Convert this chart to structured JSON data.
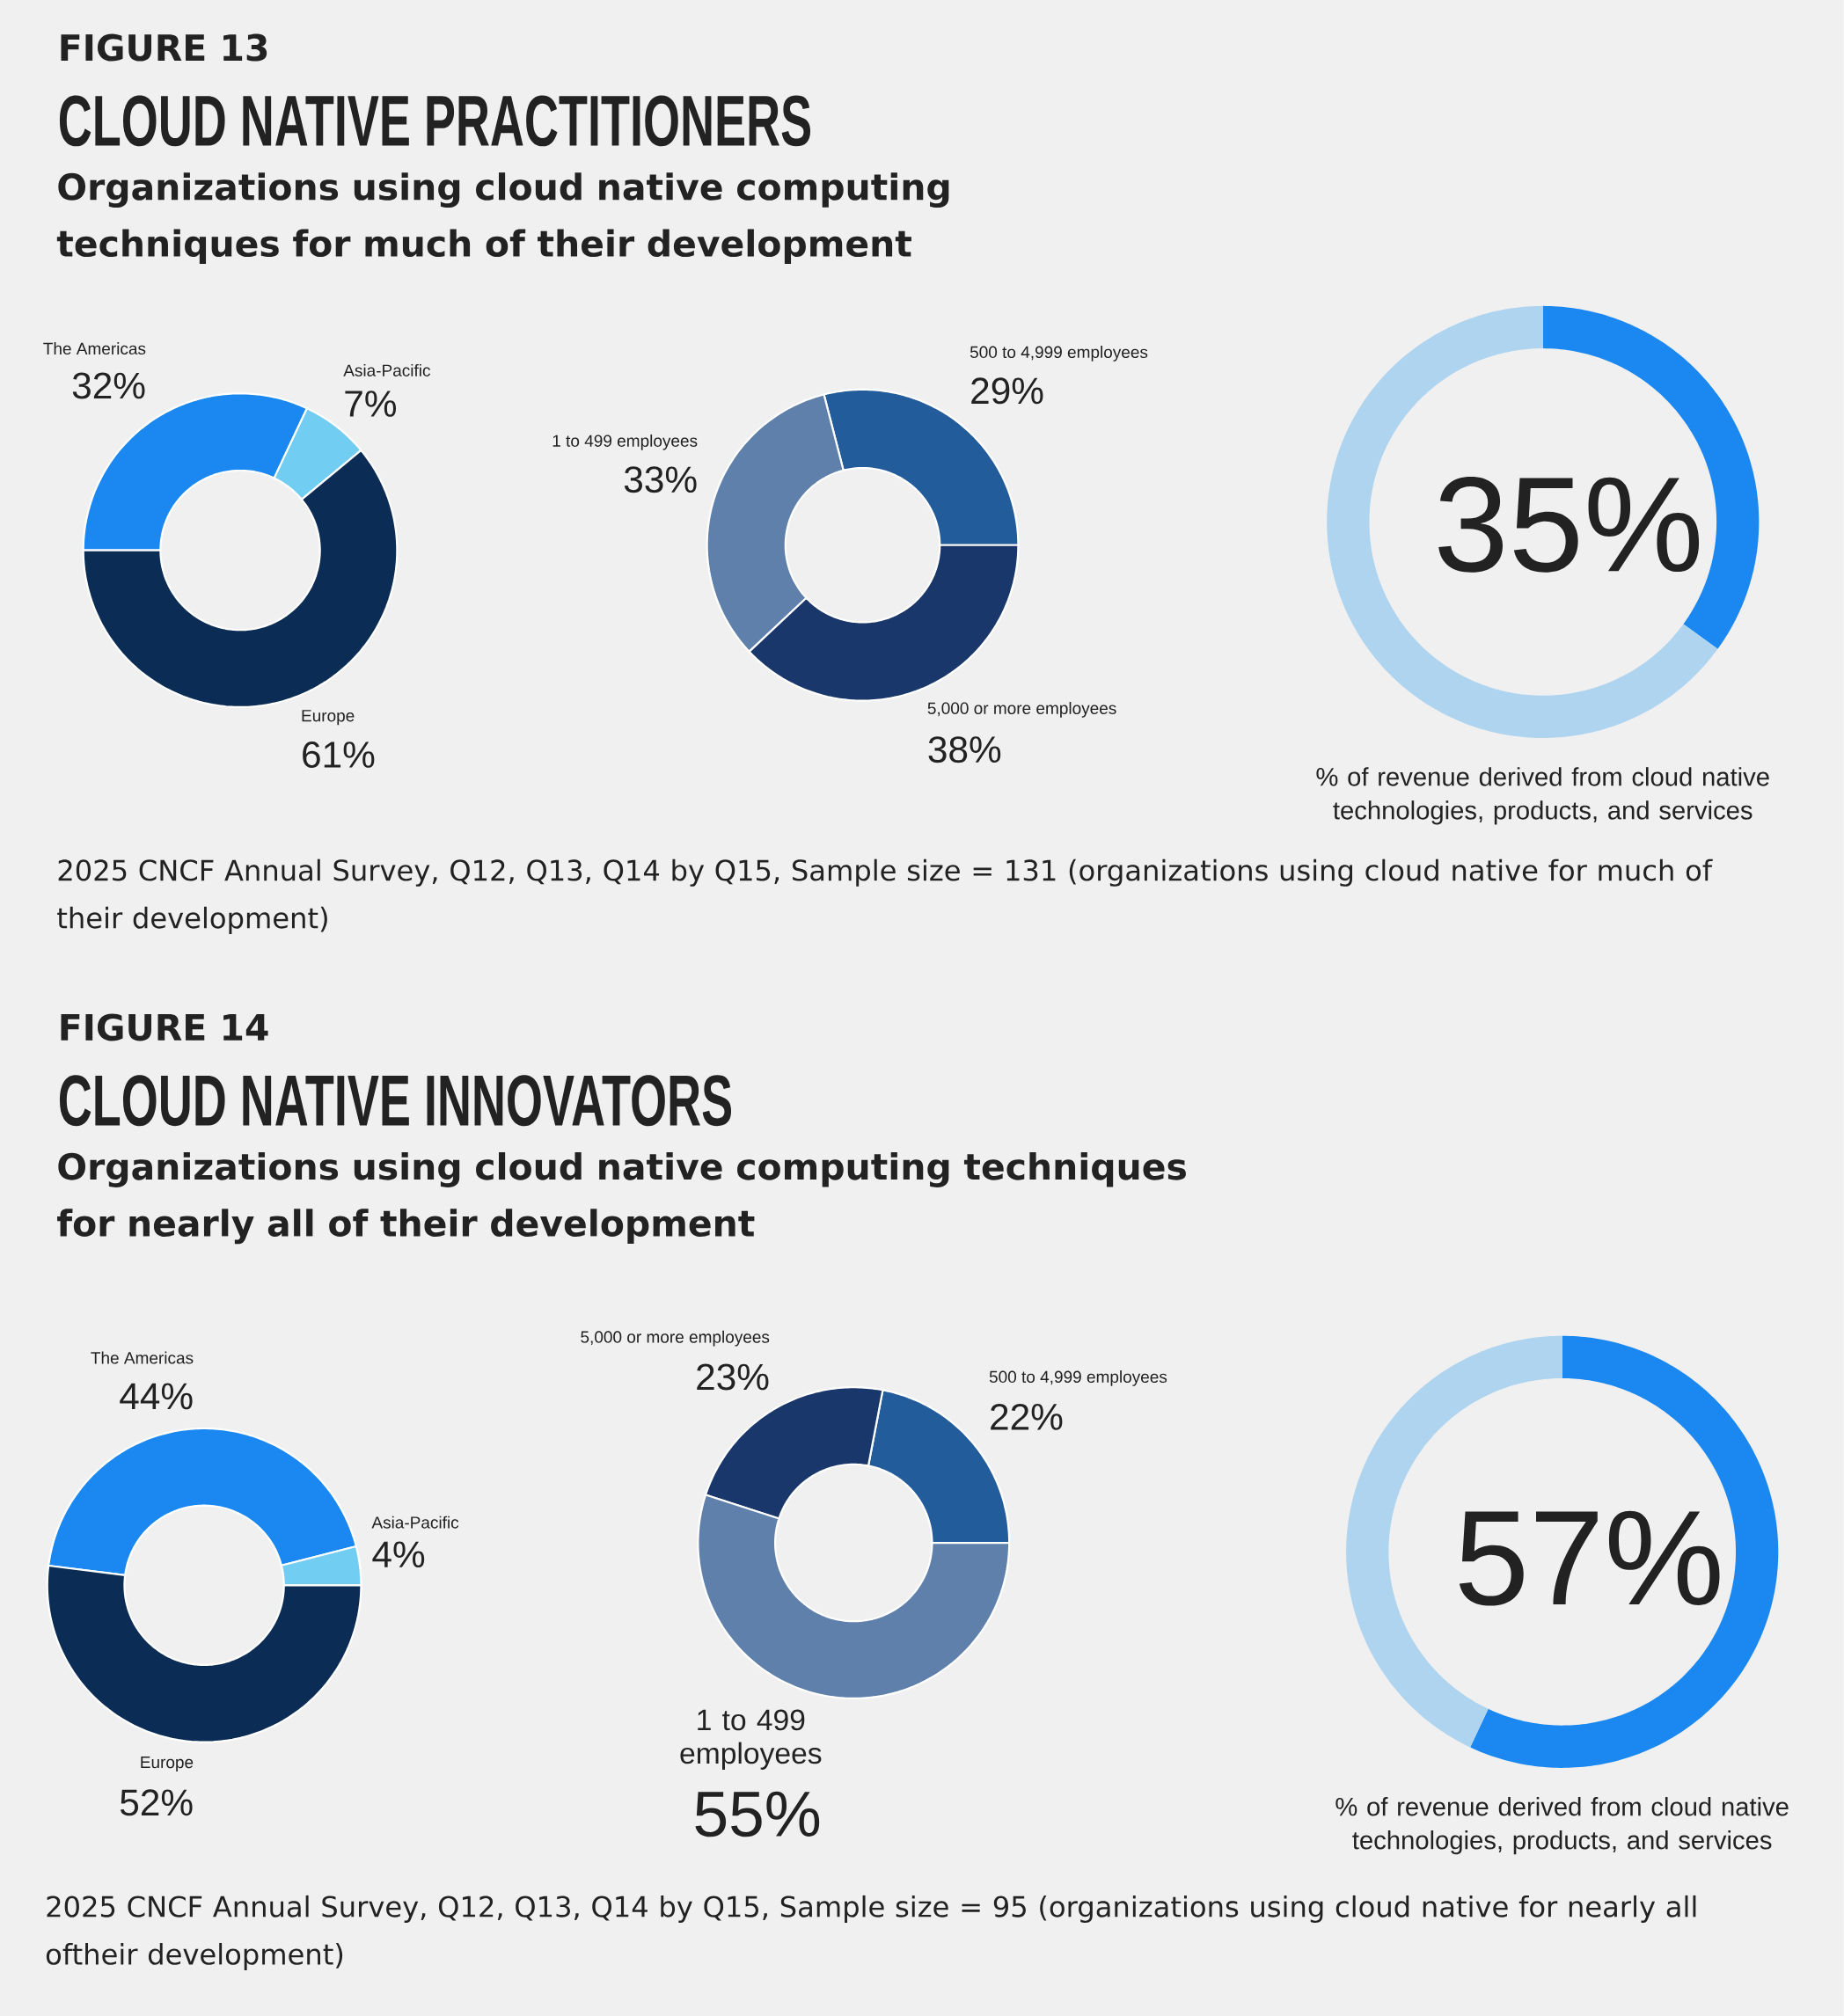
{
  "chart_data": [
    {
      "type": "donut",
      "title": "CLOUD NATIVE PRACTITIONERS",
      "subtitle": "Organizations using cloud native computing techniques for much of their development",
      "annotations": [
        "FIGURE 13",
        "2025 CNCF Annual Survey, Q12, Q13, Q14 by Q15, Sample size = 131 (organizations using cloud native for much of their development)"
      ],
      "categories": [
        "The Americas",
        "Asia-Pacific",
        "Europe"
      ],
      "values": [
        32,
        7,
        61
      ],
      "colors": [
        "#1a88f0",
        "#72cdf3",
        "#0b2c55"
      ],
      "value_labels": [
        "32%",
        "7%",
        "61%"
      ]
    },
    {
      "type": "donut",
      "categories": [
        "500 to 4,999 employees",
        "1 to 499 employees",
        "5,000 or more employees"
      ],
      "values": [
        29,
        33,
        38
      ],
      "colors": [
        "#235c9a",
        "#5e80ab",
        "#1a376b"
      ],
      "value_labels": [
        "29%",
        "33%",
        "38%"
      ]
    },
    {
      "type": "donut",
      "annotations": [
        "% of revenue derived from cloud native technologies, products, and services"
      ],
      "categories": [
        null,
        null
      ],
      "values": [
        35,
        65
      ],
      "colors": [
        "#1a88f0",
        "#aed4ef"
      ],
      "value_labels": [
        "35%",
        null
      ]
    },
    {
      "type": "donut",
      "title": "CLOUD NATIVE INNOVATORS",
      "subtitle": "Organizations using cloud native computing techniques for nearly all of their development",
      "annotations": [
        "FIGURE 14",
        "2025 CNCF Annual Survey, Q12, Q13, Q14 by Q15, Sample size = 95 (organizations using cloud native for nearly all oftheir development)"
      ],
      "categories": [
        "The Americas",
        "Asia-Pacific",
        "Europe"
      ],
      "values": [
        44,
        4,
        52
      ],
      "colors": [
        "#1a88f0",
        "#72cdf3",
        "#0b2c55"
      ],
      "value_labels": [
        "44%",
        "4%",
        "52%"
      ]
    },
    {
      "type": "donut",
      "categories": [
        "500 to 4,999 employees",
        "5,000 or more employees",
        "1 to 499 employees"
      ],
      "values": [
        22,
        23,
        55
      ],
      "colors": [
        "#235c9a",
        "#1a376b",
        "#5e80ab"
      ],
      "value_labels": [
        "22%",
        "23%",
        "55%"
      ]
    },
    {
      "type": "donut",
      "annotations": [
        "% of revenue derived from cloud native technologies, products, and services"
      ],
      "categories": [
        null,
        null
      ],
      "values": [
        57,
        43
      ],
      "colors": [
        "#1a88f0",
        "#aed4ef"
      ],
      "value_labels": [
        "57%",
        null
      ]
    }
  ]
}
